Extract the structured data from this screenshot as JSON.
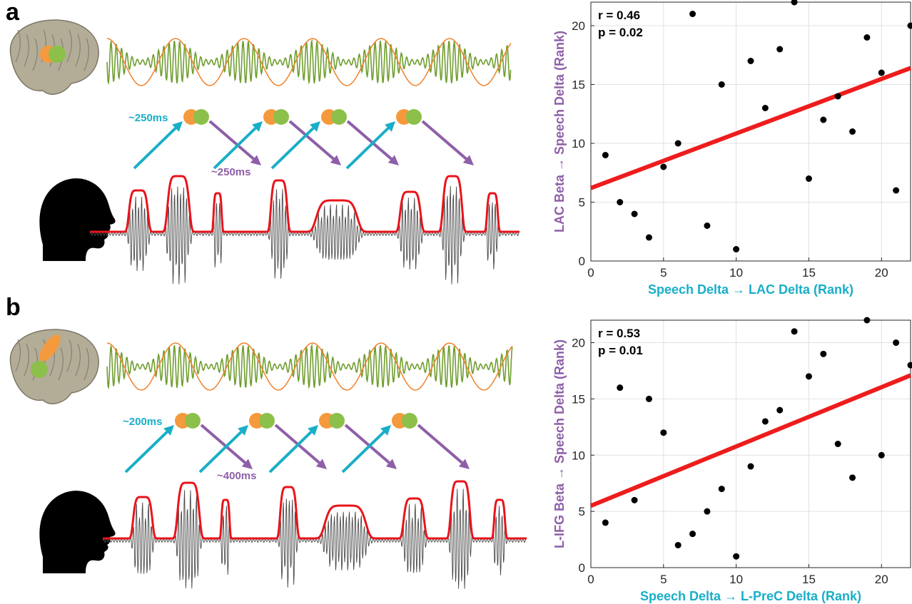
{
  "colors": {
    "oscillation_slow": "#f0822a",
    "oscillation_fast": "#6f9e2e",
    "node_orange": "#f59a3c",
    "node_green": "#8cc04a",
    "arrow_up": "#19aec7",
    "arrow_down": "#8e5fa8",
    "envelope": "#e8141b",
    "waveform": "#4a4a4a",
    "fit_line": "#ee1c1c",
    "brain": "#b3ac97",
    "silhouette": "#000000",
    "xlabel_color": "#19aec7",
    "ylabel_color": "#8e5fa8"
  },
  "panels": [
    {
      "letter": "a",
      "icons": [
        "brain-icon",
        "head-silhouette-icon"
      ],
      "lag_up_label": "~250ms",
      "lag_down_label": "~250ms"
    },
    {
      "letter": "b",
      "icons": [
        "brain-icon",
        "head-silhouette-icon"
      ],
      "lag_up_label": "~200ms",
      "lag_down_label": "~400ms"
    }
  ],
  "chart_data": [
    {
      "type": "scatter",
      "title": "",
      "xlabel": "Speech Delta → LAC Delta (Rank)",
      "ylabel": "LAC Beta → Speech Delta (Rank)",
      "xlim": [
        0,
        22
      ],
      "ylim": [
        0,
        22
      ],
      "xticks": [
        0,
        5,
        10,
        15,
        20
      ],
      "yticks": [
        0,
        5,
        10,
        15,
        20
      ],
      "grid": true,
      "annotations": [
        "r = 0.46",
        "p = 0.02"
      ],
      "points": [
        {
          "x": 1,
          "y": 9
        },
        {
          "x": 2,
          "y": 5
        },
        {
          "x": 3,
          "y": 4
        },
        {
          "x": 4,
          "y": 2
        },
        {
          "x": 5,
          "y": 8
        },
        {
          "x": 6,
          "y": 10
        },
        {
          "x": 7,
          "y": 21
        },
        {
          "x": 8,
          "y": 3
        },
        {
          "x": 9,
          "y": 15
        },
        {
          "x": 10,
          "y": 1
        },
        {
          "x": 11,
          "y": 17
        },
        {
          "x": 12,
          "y": 13
        },
        {
          "x": 13,
          "y": 18
        },
        {
          "x": 14,
          "y": 22
        },
        {
          "x": 15,
          "y": 7
        },
        {
          "x": 16,
          "y": 12
        },
        {
          "x": 17,
          "y": 14
        },
        {
          "x": 18,
          "y": 11
        },
        {
          "x": 19,
          "y": 19
        },
        {
          "x": 20,
          "y": 16
        },
        {
          "x": 21,
          "y": 6
        },
        {
          "x": 22,
          "y": 20
        }
      ],
      "fit": {
        "x": [
          0,
          22
        ],
        "y": [
          6.2,
          16.4
        ]
      }
    },
    {
      "type": "scatter",
      "title": "",
      "xlabel": "Speech Delta → L-PreC Delta (Rank)",
      "ylabel": "L-IFG Beta → Speech Delta (Rank)",
      "xlim": [
        0,
        22
      ],
      "ylim": [
        0,
        22
      ],
      "xticks": [
        0,
        5,
        10,
        15,
        20
      ],
      "yticks": [
        0,
        5,
        10,
        15,
        20
      ],
      "grid": true,
      "annotations": [
        "r = 0.53",
        "p = 0.01"
      ],
      "points": [
        {
          "x": 1,
          "y": 4
        },
        {
          "x": 2,
          "y": 16
        },
        {
          "x": 3,
          "y": 6
        },
        {
          "x": 4,
          "y": 15
        },
        {
          "x": 5,
          "y": 12
        },
        {
          "x": 6,
          "y": 2
        },
        {
          "x": 7,
          "y": 3
        },
        {
          "x": 8,
          "y": 5
        },
        {
          "x": 9,
          "y": 7
        },
        {
          "x": 10,
          "y": 1
        },
        {
          "x": 11,
          "y": 9
        },
        {
          "x": 12,
          "y": 13
        },
        {
          "x": 13,
          "y": 14
        },
        {
          "x": 14,
          "y": 21
        },
        {
          "x": 15,
          "y": 17
        },
        {
          "x": 16,
          "y": 19
        },
        {
          "x": 17,
          "y": 11
        },
        {
          "x": 18,
          "y": 8
        },
        {
          "x": 19,
          "y": 22
        },
        {
          "x": 20,
          "y": 10
        },
        {
          "x": 21,
          "y": 20
        },
        {
          "x": 22,
          "y": 18
        }
      ],
      "fit": {
        "x": [
          0,
          22
        ],
        "y": [
          5.5,
          17.1
        ]
      }
    }
  ]
}
